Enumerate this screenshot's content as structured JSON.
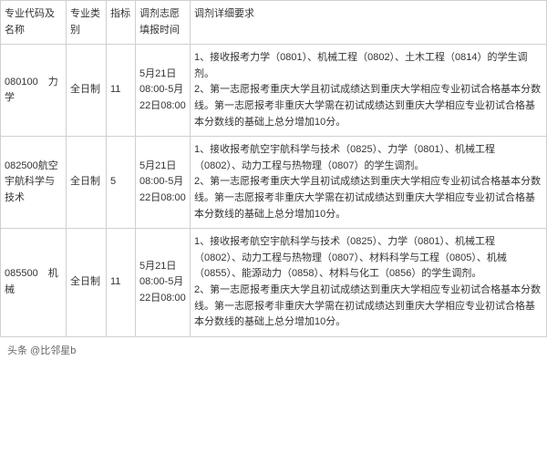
{
  "table": {
    "headers": {
      "code": "专业代码及名称",
      "type": "专业类别",
      "quota": "指标",
      "time": "调剂志愿填报时间",
      "req": "调剂详细要求"
    },
    "rows": [
      {
        "code": "080100　力学",
        "type": "全日制",
        "quota": "11",
        "time": "5月21日08:00-5月22日08:00",
        "req": "1、接收报考力学（0801）、机械工程（0802）、土木工程（0814）的学生调剂。\n2、第一志愿报考重庆大学且初试成绩达到重庆大学相应专业初试合格基本分数线。第一志愿报考非重庆大学需在初试成绩达到重庆大学相应专业初试合格基本分数线的基础上总分增加10分。"
      },
      {
        "code": "082500航空宇航科学与技术",
        "type": "全日制",
        "quota": "5",
        "time": "5月21日08:00-5月22日08:00",
        "req": "1、接收报考航空宇航科学与技术（0825）、力学（0801）、机械工程（0802）、动力工程与热物理（0807）的学生调剂。\n2、第一志愿报考重庆大学且初试成绩达到重庆大学相应专业初试合格基本分数线。第一志愿报考非重庆大学需在初试成绩达到重庆大学相应专业初试合格基本分数线的基础上总分增加10分。"
      },
      {
        "code": "085500　机械",
        "type": "全日制",
        "quota": "11",
        "time": "5月21日08:00-5月22日08:00",
        "req": "1、接收报考航空宇航科学与技术（0825）、力学（0801）、机械工程（0802）、动力工程与热物理（0807）、材料科学与工程（0805）、机械（0855）、能源动力（0858）、材料与化工（0856）的学生调剂。\n2、第一志愿报考重庆大学且初试成绩达到重庆大学相应专业初试合格基本分数线。第一志愿报考非重庆大学需在初试成绩达到重庆大学相应专业初试合格基本分数线的基础上总分增加10分。"
      }
    ]
  },
  "footer": "头条 @比邻星b"
}
